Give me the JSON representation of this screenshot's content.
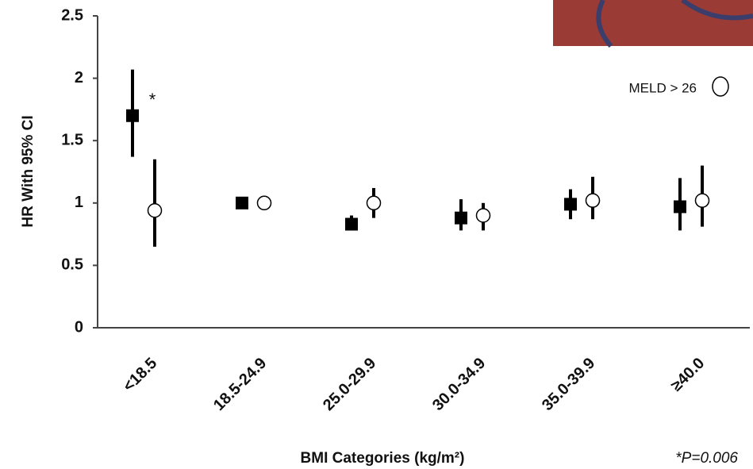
{
  "chart_data": {
    "type": "forest",
    "y_label": "HR With 95% CI",
    "x_label": "BMI Categories (kg/m²)",
    "categories": [
      "<18.5",
      "18.5-24.9",
      "25.0-29.9",
      "30.0-34.9",
      "35.0-39.9",
      "≥40.0"
    ],
    "series": [
      {
        "marker": "square",
        "color": "#000000",
        "values": [
          1.7,
          1.0,
          0.83,
          0.88,
          0.99,
          0.97
        ],
        "lower": [
          1.37,
          null,
          0.78,
          0.78,
          0.87,
          0.78
        ],
        "upper": [
          2.07,
          null,
          0.9,
          1.03,
          1.11,
          1.2
        ]
      },
      {
        "name": "MELD > 26",
        "marker": "circle",
        "color": "#ffffff",
        "values": [
          0.94,
          1.0,
          1.0,
          0.9,
          1.02,
          1.02
        ],
        "lower": [
          0.65,
          null,
          0.88,
          0.78,
          0.87,
          0.81
        ],
        "upper": [
          1.35,
          null,
          1.12,
          1.0,
          1.21,
          1.3
        ]
      }
    ],
    "ylim": [
      0,
      2.5
    ],
    "yticks": [
      0,
      0.5,
      1,
      1.5,
      2,
      2.5
    ],
    "legend": "top-right",
    "annotations": [
      "*",
      "*P=0.006"
    ]
  }
}
